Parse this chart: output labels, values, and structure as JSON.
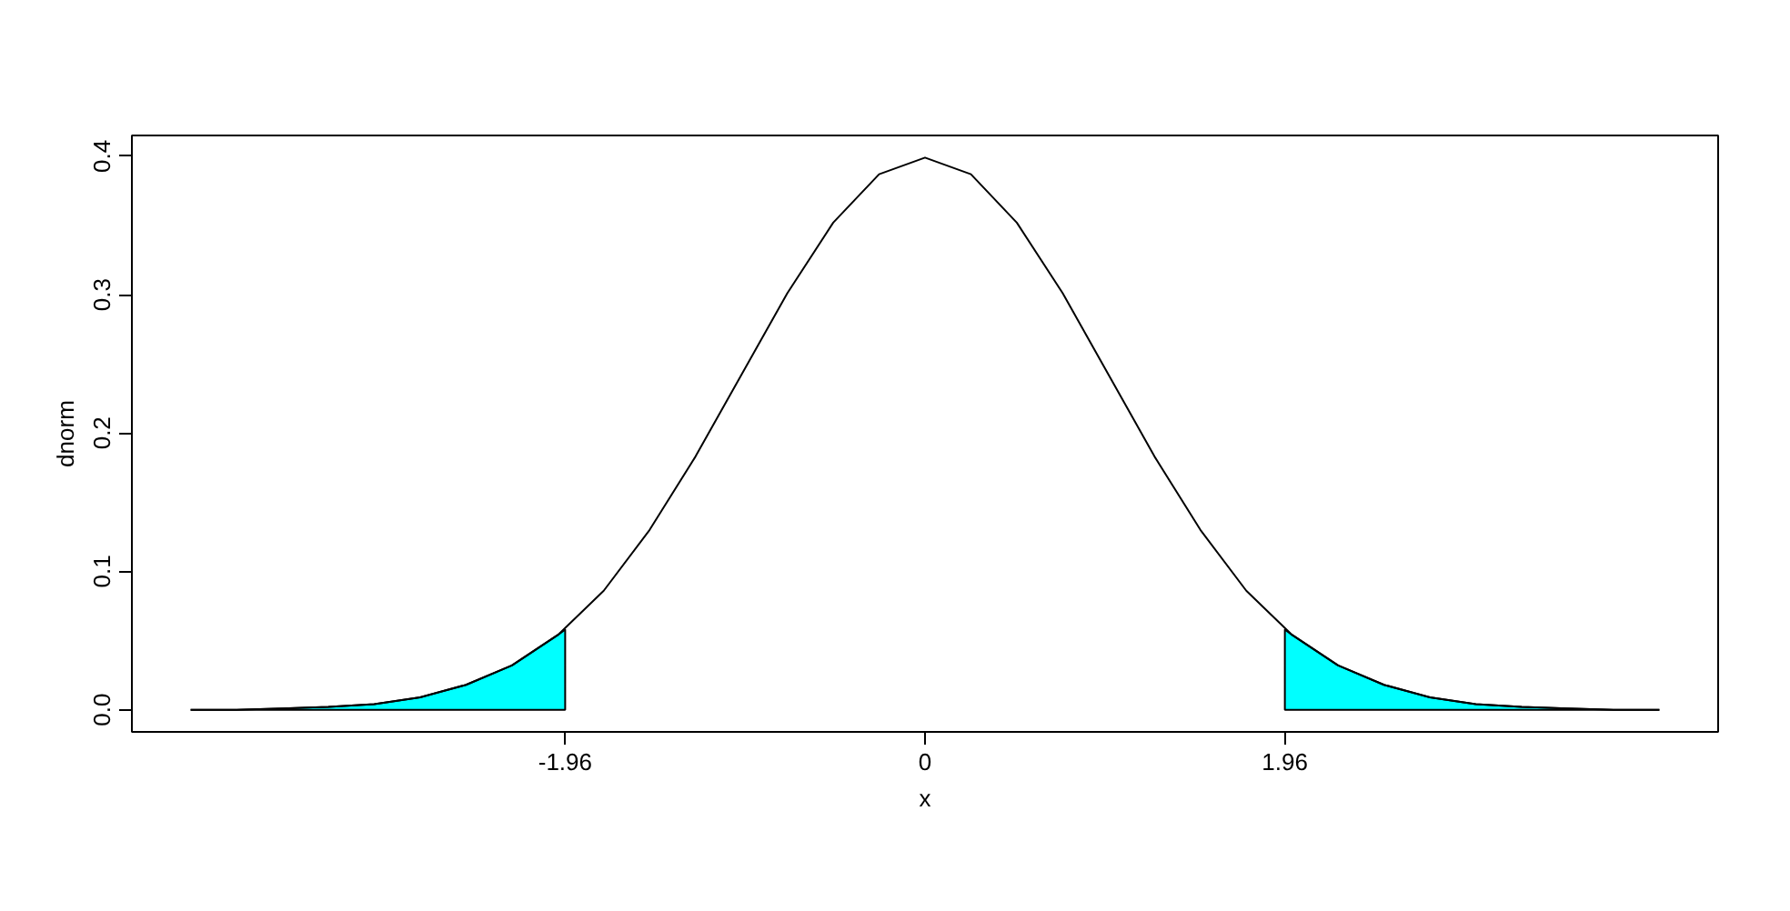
{
  "chart_data": {
    "type": "line",
    "xlabel": "x",
    "ylabel": "dnorm",
    "xlim": [
      -4.32,
      4.32
    ],
    "ylim": [
      -0.016,
      0.415
    ],
    "xticks": [
      -1.96,
      0,
      1.96
    ],
    "yticks": [
      {
        "value": 0,
        "label": "0.0"
      },
      {
        "value": 0.1,
        "label": "0.1"
      },
      {
        "value": 0.2,
        "label": "0.2"
      },
      {
        "value": 0.3,
        "label": "0.3"
      },
      {
        "value": 0.4,
        "label": "0.4"
      }
    ],
    "grid": false,
    "series": [
      {
        "type": "area",
        "color": "#00ffff",
        "x": [
          -4,
          -3.75,
          -3.5,
          -3.25,
          -3,
          -2.75,
          -2.5,
          -2.25,
          -2,
          -1.96
        ],
        "values": [
          0.0,
          0.0,
          0.001,
          0.002,
          0.004,
          0.009,
          0.018,
          0.032,
          0.054,
          0.058
        ]
      },
      {
        "type": "area",
        "color": "#00ffff",
        "x": [
          1.96,
          2,
          2.25,
          2.5,
          2.75,
          3,
          3.25,
          3.5,
          3.75,
          4
        ],
        "values": [
          0.058,
          0.054,
          0.032,
          0.018,
          0.009,
          0.004,
          0.002,
          0.001,
          0.0,
          0.0
        ]
      },
      {
        "color": "#000000",
        "x": [
          -4,
          -3.75,
          -3.5,
          -3.25,
          -3,
          -2.75,
          -2.5,
          -2.25,
          -2,
          -1.75,
          -1.5,
          -1.25,
          -1,
          -0.75,
          -0.5,
          -0.25,
          0,
          0.25,
          0.5,
          0.75,
          1,
          1.25,
          1.5,
          1.75,
          2,
          2.25,
          2.5,
          2.75,
          3,
          3.25,
          3.5,
          3.75,
          4
        ],
        "values": [
          0.0,
          0.0,
          0.001,
          0.002,
          0.004,
          0.009,
          0.018,
          0.032,
          0.054,
          0.086,
          0.13,
          0.183,
          0.242,
          0.301,
          0.352,
          0.387,
          0.399,
          0.387,
          0.352,
          0.301,
          0.242,
          0.183,
          0.13,
          0.086,
          0.054,
          0.032,
          0.018,
          0.009,
          0.004,
          0.002,
          0.001,
          0.0,
          0.0
        ]
      }
    ]
  }
}
